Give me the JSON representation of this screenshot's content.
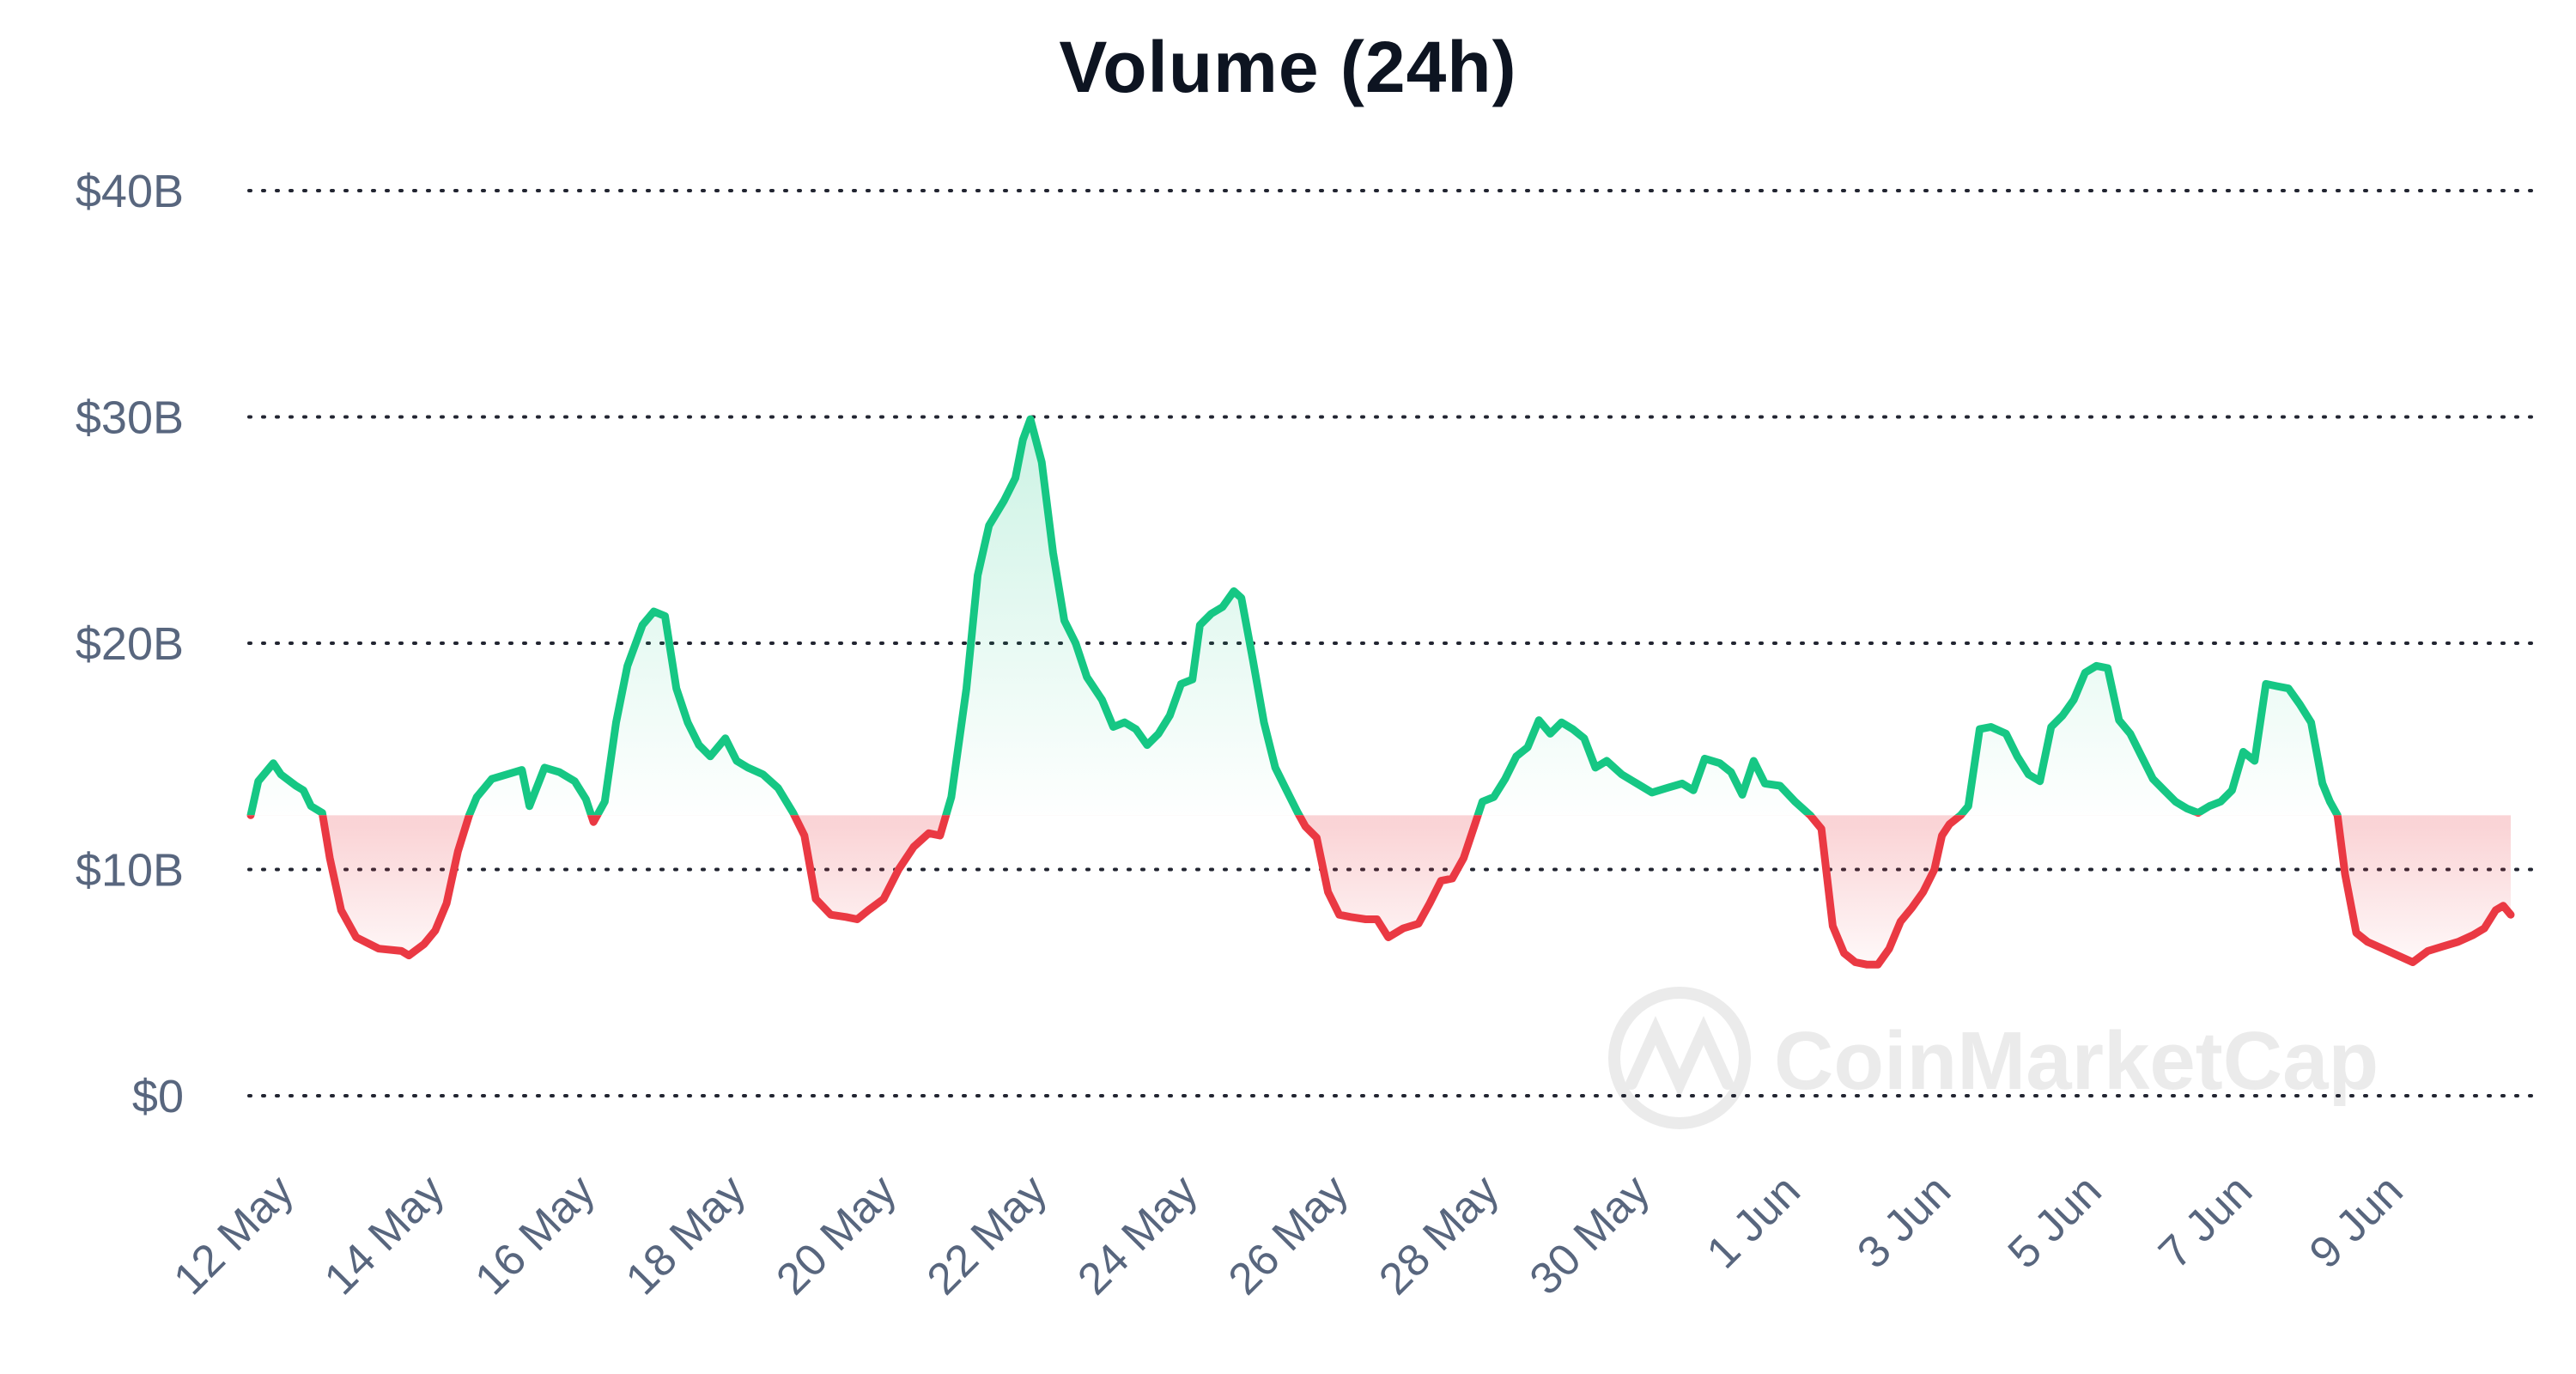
{
  "chart_data": {
    "type": "area",
    "title": "Volume (24h)",
    "xlabel": "",
    "ylabel": "",
    "ylim": [
      0,
      40
    ],
    "y_ticks": [
      {
        "value": 0,
        "label": "$0"
      },
      {
        "value": 10,
        "label": "$10B"
      },
      {
        "value": 20,
        "label": "$20B"
      },
      {
        "value": 30,
        "label": "$30B"
      },
      {
        "value": 40,
        "label": "$40B"
      }
    ],
    "x_ticks": [
      {
        "x": 11.6,
        "label": "12 May"
      },
      {
        "x": 13.6,
        "label": "14 May"
      },
      {
        "x": 15.6,
        "label": "16 May"
      },
      {
        "x": 17.6,
        "label": "18 May"
      },
      {
        "x": 19.6,
        "label": "20 May"
      },
      {
        "x": 21.6,
        "label": "22 May"
      },
      {
        "x": 23.6,
        "label": "24 May"
      },
      {
        "x": 25.6,
        "label": "26 May"
      },
      {
        "x": 27.6,
        "label": "28 May"
      },
      {
        "x": 29.6,
        "label": "30 May"
      },
      {
        "x": 31.6,
        "label": "1 Jun"
      },
      {
        "x": 33.6,
        "label": "3 Jun"
      },
      {
        "x": 35.6,
        "label": "5 Jun"
      },
      {
        "x": 37.6,
        "label": "7 Jun"
      },
      {
        "x": 39.6,
        "label": "9 Jun"
      }
    ],
    "x_unit": "day (11 May = 11)",
    "xlim": [
      11,
      42.3
    ],
    "baseline": 12.4,
    "grid": true,
    "legend": "none",
    "colors": {
      "above": "#16c784",
      "below": "#ea3943",
      "grid": "#222531",
      "text": "#58667e",
      "title": "#0d1421"
    },
    "series": [
      {
        "values": [
          [
            11.0,
            12.4
          ],
          [
            11.1,
            13.9
          ],
          [
            11.3,
            14.7
          ],
          [
            11.4,
            14.2
          ],
          [
            11.6,
            13.7
          ],
          [
            11.7,
            13.5
          ],
          [
            11.8,
            12.8
          ],
          [
            11.95,
            12.5
          ],
          [
            12.05,
            10.5
          ],
          [
            12.2,
            8.2
          ],
          [
            12.4,
            7.0
          ],
          [
            12.7,
            6.5
          ],
          [
            13.0,
            6.4
          ],
          [
            13.1,
            6.2
          ],
          [
            13.3,
            6.7
          ],
          [
            13.45,
            7.3
          ],
          [
            13.6,
            8.5
          ],
          [
            13.75,
            10.8
          ],
          [
            13.9,
            12.4
          ],
          [
            14.0,
            13.2
          ],
          [
            14.2,
            14.0
          ],
          [
            14.4,
            14.2
          ],
          [
            14.6,
            14.4
          ],
          [
            14.7,
            12.8
          ],
          [
            14.9,
            14.5
          ],
          [
            15.1,
            14.3
          ],
          [
            15.3,
            13.9
          ],
          [
            15.45,
            13.1
          ],
          [
            15.55,
            12.1
          ],
          [
            15.7,
            13.0
          ],
          [
            15.85,
            16.5
          ],
          [
            16.0,
            19.0
          ],
          [
            16.2,
            20.8
          ],
          [
            16.35,
            21.4
          ],
          [
            16.5,
            21.2
          ],
          [
            16.65,
            18.0
          ],
          [
            16.8,
            16.5
          ],
          [
            16.95,
            15.5
          ],
          [
            17.1,
            15.0
          ],
          [
            17.3,
            15.8
          ],
          [
            17.45,
            14.8
          ],
          [
            17.6,
            14.5
          ],
          [
            17.8,
            14.2
          ],
          [
            18.0,
            13.6
          ],
          [
            18.2,
            12.5
          ],
          [
            18.35,
            11.5
          ],
          [
            18.5,
            8.7
          ],
          [
            18.7,
            8.0
          ],
          [
            18.9,
            7.9
          ],
          [
            19.05,
            7.8
          ],
          [
            19.2,
            8.2
          ],
          [
            19.4,
            8.7
          ],
          [
            19.6,
            10.0
          ],
          [
            19.8,
            11.0
          ],
          [
            20.0,
            11.6
          ],
          [
            20.15,
            11.5
          ],
          [
            20.3,
            13.2
          ],
          [
            20.5,
            18.0
          ],
          [
            20.65,
            23.0
          ],
          [
            20.8,
            25.2
          ],
          [
            21.0,
            26.3
          ],
          [
            21.15,
            27.3
          ],
          [
            21.25,
            29.0
          ],
          [
            21.35,
            29.9
          ],
          [
            21.5,
            28.0
          ],
          [
            21.65,
            24.0
          ],
          [
            21.8,
            21.0
          ],
          [
            21.95,
            20.0
          ],
          [
            22.1,
            18.5
          ],
          [
            22.3,
            17.5
          ],
          [
            22.45,
            16.3
          ],
          [
            22.6,
            16.5
          ],
          [
            22.75,
            16.2
          ],
          [
            22.9,
            15.5
          ],
          [
            23.05,
            16.0
          ],
          [
            23.2,
            16.8
          ],
          [
            23.35,
            18.2
          ],
          [
            23.5,
            18.4
          ],
          [
            23.6,
            20.8
          ],
          [
            23.75,
            21.3
          ],
          [
            23.9,
            21.6
          ],
          [
            24.05,
            22.3
          ],
          [
            24.15,
            22.0
          ],
          [
            24.3,
            19.3
          ],
          [
            24.45,
            16.5
          ],
          [
            24.6,
            14.5
          ],
          [
            24.75,
            13.5
          ],
          [
            24.9,
            12.5
          ],
          [
            25.0,
            11.9
          ],
          [
            25.15,
            11.4
          ],
          [
            25.3,
            9.0
          ],
          [
            25.45,
            8.0
          ],
          [
            25.6,
            7.9
          ],
          [
            25.8,
            7.8
          ],
          [
            25.95,
            7.8
          ],
          [
            26.1,
            7.0
          ],
          [
            26.3,
            7.4
          ],
          [
            26.5,
            7.6
          ],
          [
            26.65,
            8.5
          ],
          [
            26.8,
            9.5
          ],
          [
            26.95,
            9.6
          ],
          [
            27.1,
            10.5
          ],
          [
            27.25,
            12.0
          ],
          [
            27.35,
            13.0
          ],
          [
            27.5,
            13.2
          ],
          [
            27.65,
            14.0
          ],
          [
            27.8,
            15.0
          ],
          [
            27.95,
            15.4
          ],
          [
            28.1,
            16.6
          ],
          [
            28.25,
            16.0
          ],
          [
            28.4,
            16.5
          ],
          [
            28.55,
            16.2
          ],
          [
            28.7,
            15.8
          ],
          [
            28.85,
            14.5
          ],
          [
            29.0,
            14.8
          ],
          [
            29.2,
            14.2
          ],
          [
            29.4,
            13.8
          ],
          [
            29.6,
            13.4
          ],
          [
            29.8,
            13.6
          ],
          [
            30.0,
            13.8
          ],
          [
            30.15,
            13.5
          ],
          [
            30.3,
            14.9
          ],
          [
            30.5,
            14.7
          ],
          [
            30.65,
            14.3
          ],
          [
            30.8,
            13.3
          ],
          [
            30.95,
            14.8
          ],
          [
            31.1,
            13.8
          ],
          [
            31.3,
            13.7
          ],
          [
            31.5,
            13.0
          ],
          [
            31.7,
            12.4
          ],
          [
            31.85,
            11.8
          ],
          [
            32.0,
            7.5
          ],
          [
            32.15,
            6.3
          ],
          [
            32.3,
            5.9
          ],
          [
            32.45,
            5.8
          ],
          [
            32.6,
            5.8
          ],
          [
            32.75,
            6.5
          ],
          [
            32.9,
            7.7
          ],
          [
            33.05,
            8.3
          ],
          [
            33.2,
            9.0
          ],
          [
            33.35,
            10.0
          ],
          [
            33.45,
            11.5
          ],
          [
            33.55,
            12.0
          ],
          [
            33.7,
            12.4
          ],
          [
            33.8,
            12.8
          ],
          [
            33.95,
            16.2
          ],
          [
            34.1,
            16.3
          ],
          [
            34.3,
            16.0
          ],
          [
            34.45,
            15.0
          ],
          [
            34.6,
            14.2
          ],
          [
            34.75,
            13.9
          ],
          [
            34.9,
            16.3
          ],
          [
            35.05,
            16.8
          ],
          [
            35.2,
            17.5
          ],
          [
            35.35,
            18.7
          ],
          [
            35.5,
            19.0
          ],
          [
            35.65,
            18.9
          ],
          [
            35.8,
            16.6
          ],
          [
            35.95,
            16.0
          ],
          [
            36.1,
            15.0
          ],
          [
            36.25,
            14.0
          ],
          [
            36.4,
            13.5
          ],
          [
            36.55,
            13.0
          ],
          [
            36.7,
            12.7
          ],
          [
            36.85,
            12.5
          ],
          [
            37.0,
            12.8
          ],
          [
            37.15,
            13.0
          ],
          [
            37.3,
            13.5
          ],
          [
            37.45,
            15.2
          ],
          [
            37.6,
            14.8
          ],
          [
            37.75,
            18.2
          ],
          [
            37.9,
            18.1
          ],
          [
            38.05,
            18.0
          ],
          [
            38.2,
            17.3
          ],
          [
            38.35,
            16.5
          ],
          [
            38.5,
            13.8
          ],
          [
            38.6,
            13.0
          ],
          [
            38.7,
            12.4
          ],
          [
            38.8,
            9.8
          ],
          [
            38.95,
            7.2
          ],
          [
            39.1,
            6.8
          ],
          [
            39.3,
            6.5
          ],
          [
            39.5,
            6.2
          ],
          [
            39.7,
            5.9
          ],
          [
            39.9,
            6.4
          ],
          [
            40.1,
            6.6
          ],
          [
            40.3,
            6.8
          ],
          [
            40.5,
            7.1
          ],
          [
            40.65,
            7.4
          ],
          [
            40.8,
            8.2
          ],
          [
            40.9,
            8.4
          ],
          [
            41.0,
            8.0
          ]
        ]
      }
    ]
  },
  "watermark": {
    "text": "CoinMarketCap"
  }
}
